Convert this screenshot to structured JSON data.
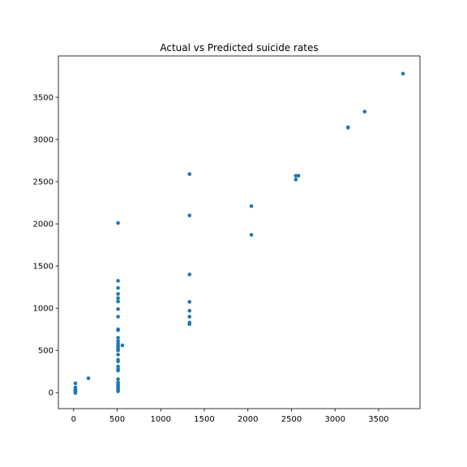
{
  "chart_data": {
    "type": "scatter",
    "title": "Actual vs Predicted suicide rates",
    "xlabel": "",
    "ylabel": "",
    "xlim": [
      -175,
      3975
    ],
    "ylim": [
      -190,
      3990
    ],
    "x_ticks": [
      0,
      500,
      1000,
      1500,
      2000,
      2500,
      3000,
      3500
    ],
    "y_ticks": [
      0,
      500,
      1000,
      1500,
      2000,
      2500,
      3000,
      3500
    ],
    "grid": false,
    "legend": "none",
    "marker_color": "#1f77b4",
    "points": [
      [
        20,
        110
      ],
      [
        20,
        60
      ],
      [
        20,
        40
      ],
      [
        20,
        25
      ],
      [
        20,
        15
      ],
      [
        20,
        5
      ],
      [
        20,
        -5
      ],
      [
        20,
        30
      ],
      [
        170,
        170
      ],
      [
        510,
        2010
      ],
      [
        510,
        1325
      ],
      [
        510,
        1240
      ],
      [
        510,
        1170
      ],
      [
        510,
        1120
      ],
      [
        510,
        1080
      ],
      [
        510,
        990
      ],
      [
        510,
        900
      ],
      [
        510,
        750
      ],
      [
        510,
        740
      ],
      [
        510,
        650
      ],
      [
        510,
        610
      ],
      [
        510,
        580
      ],
      [
        510,
        560
      ],
      [
        510,
        540
      ],
      [
        510,
        520
      ],
      [
        510,
        500
      ],
      [
        510,
        450
      ],
      [
        510,
        390
      ],
      [
        510,
        370
      ],
      [
        510,
        310
      ],
      [
        510,
        280
      ],
      [
        510,
        260
      ],
      [
        510,
        160
      ],
      [
        510,
        120
      ],
      [
        510,
        100
      ],
      [
        510,
        80
      ],
      [
        510,
        70
      ],
      [
        510,
        50
      ],
      [
        510,
        30
      ],
      [
        510,
        15
      ],
      [
        560,
        560
      ],
      [
        1330,
        2590
      ],
      [
        1330,
        2100
      ],
      [
        1330,
        1400
      ],
      [
        1330,
        1075
      ],
      [
        1330,
        970
      ],
      [
        1330,
        900
      ],
      [
        1330,
        830
      ],
      [
        1330,
        810
      ],
      [
        2040,
        2210
      ],
      [
        2040,
        1870
      ],
      [
        2550,
        2570
      ],
      [
        2550,
        2525
      ],
      [
        2580,
        2570
      ],
      [
        3150,
        3145
      ],
      [
        3150,
        3140
      ],
      [
        3340,
        3330
      ],
      [
        3780,
        3780
      ]
    ]
  }
}
